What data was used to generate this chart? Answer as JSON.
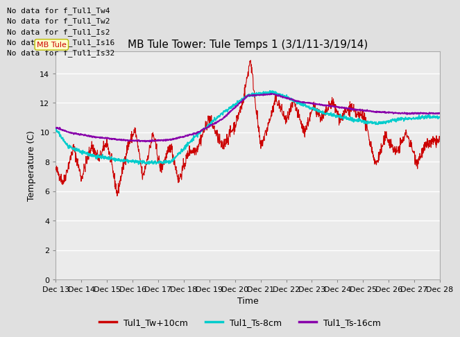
{
  "title": "MB Tule Tower: Tule Temps 1 (3/1/11-3/19/14)",
  "xlabel": "Time",
  "ylabel": "Temperature (C)",
  "ylim": [
    0,
    15.5
  ],
  "yticks": [
    0,
    2,
    4,
    6,
    8,
    10,
    12,
    14
  ],
  "xlim_days": [
    13,
    28
  ],
  "xtick_labels": [
    "Dec 13",
    "Dec 14",
    "Dec 15",
    "Dec 16",
    "Dec 17",
    "Dec 18",
    "Dec 19",
    "Dec 20",
    "Dec 21",
    "Dec 22",
    "Dec 23",
    "Dec 24",
    "Dec 25",
    "Dec 26",
    "Dec 27",
    "Dec 28"
  ],
  "legend_labels": [
    "Tul1_Tw+10cm",
    "Tul1_Ts-8cm",
    "Tul1_Ts-16cm"
  ],
  "legend_colors": [
    "#cc0000",
    "#00cccc",
    "#8800aa"
  ],
  "no_data_texts": [
    "No data for f_Tul1_Tw4",
    "No data for f_Tul1_Tw2",
    "No data for f_Tul1_Is2",
    "No data for f_Tul1_Is16",
    "No data for f_Tul1_Is32"
  ],
  "tooltip_text": "MB Tule",
  "bg_color": "#e0e0e0",
  "plot_bg_color": "#ebebeb",
  "grid_color": "#ffffff",
  "title_fontsize": 11,
  "axis_fontsize": 9,
  "tick_fontsize": 8,
  "no_data_fontsize": 8,
  "legend_fontsize": 9
}
